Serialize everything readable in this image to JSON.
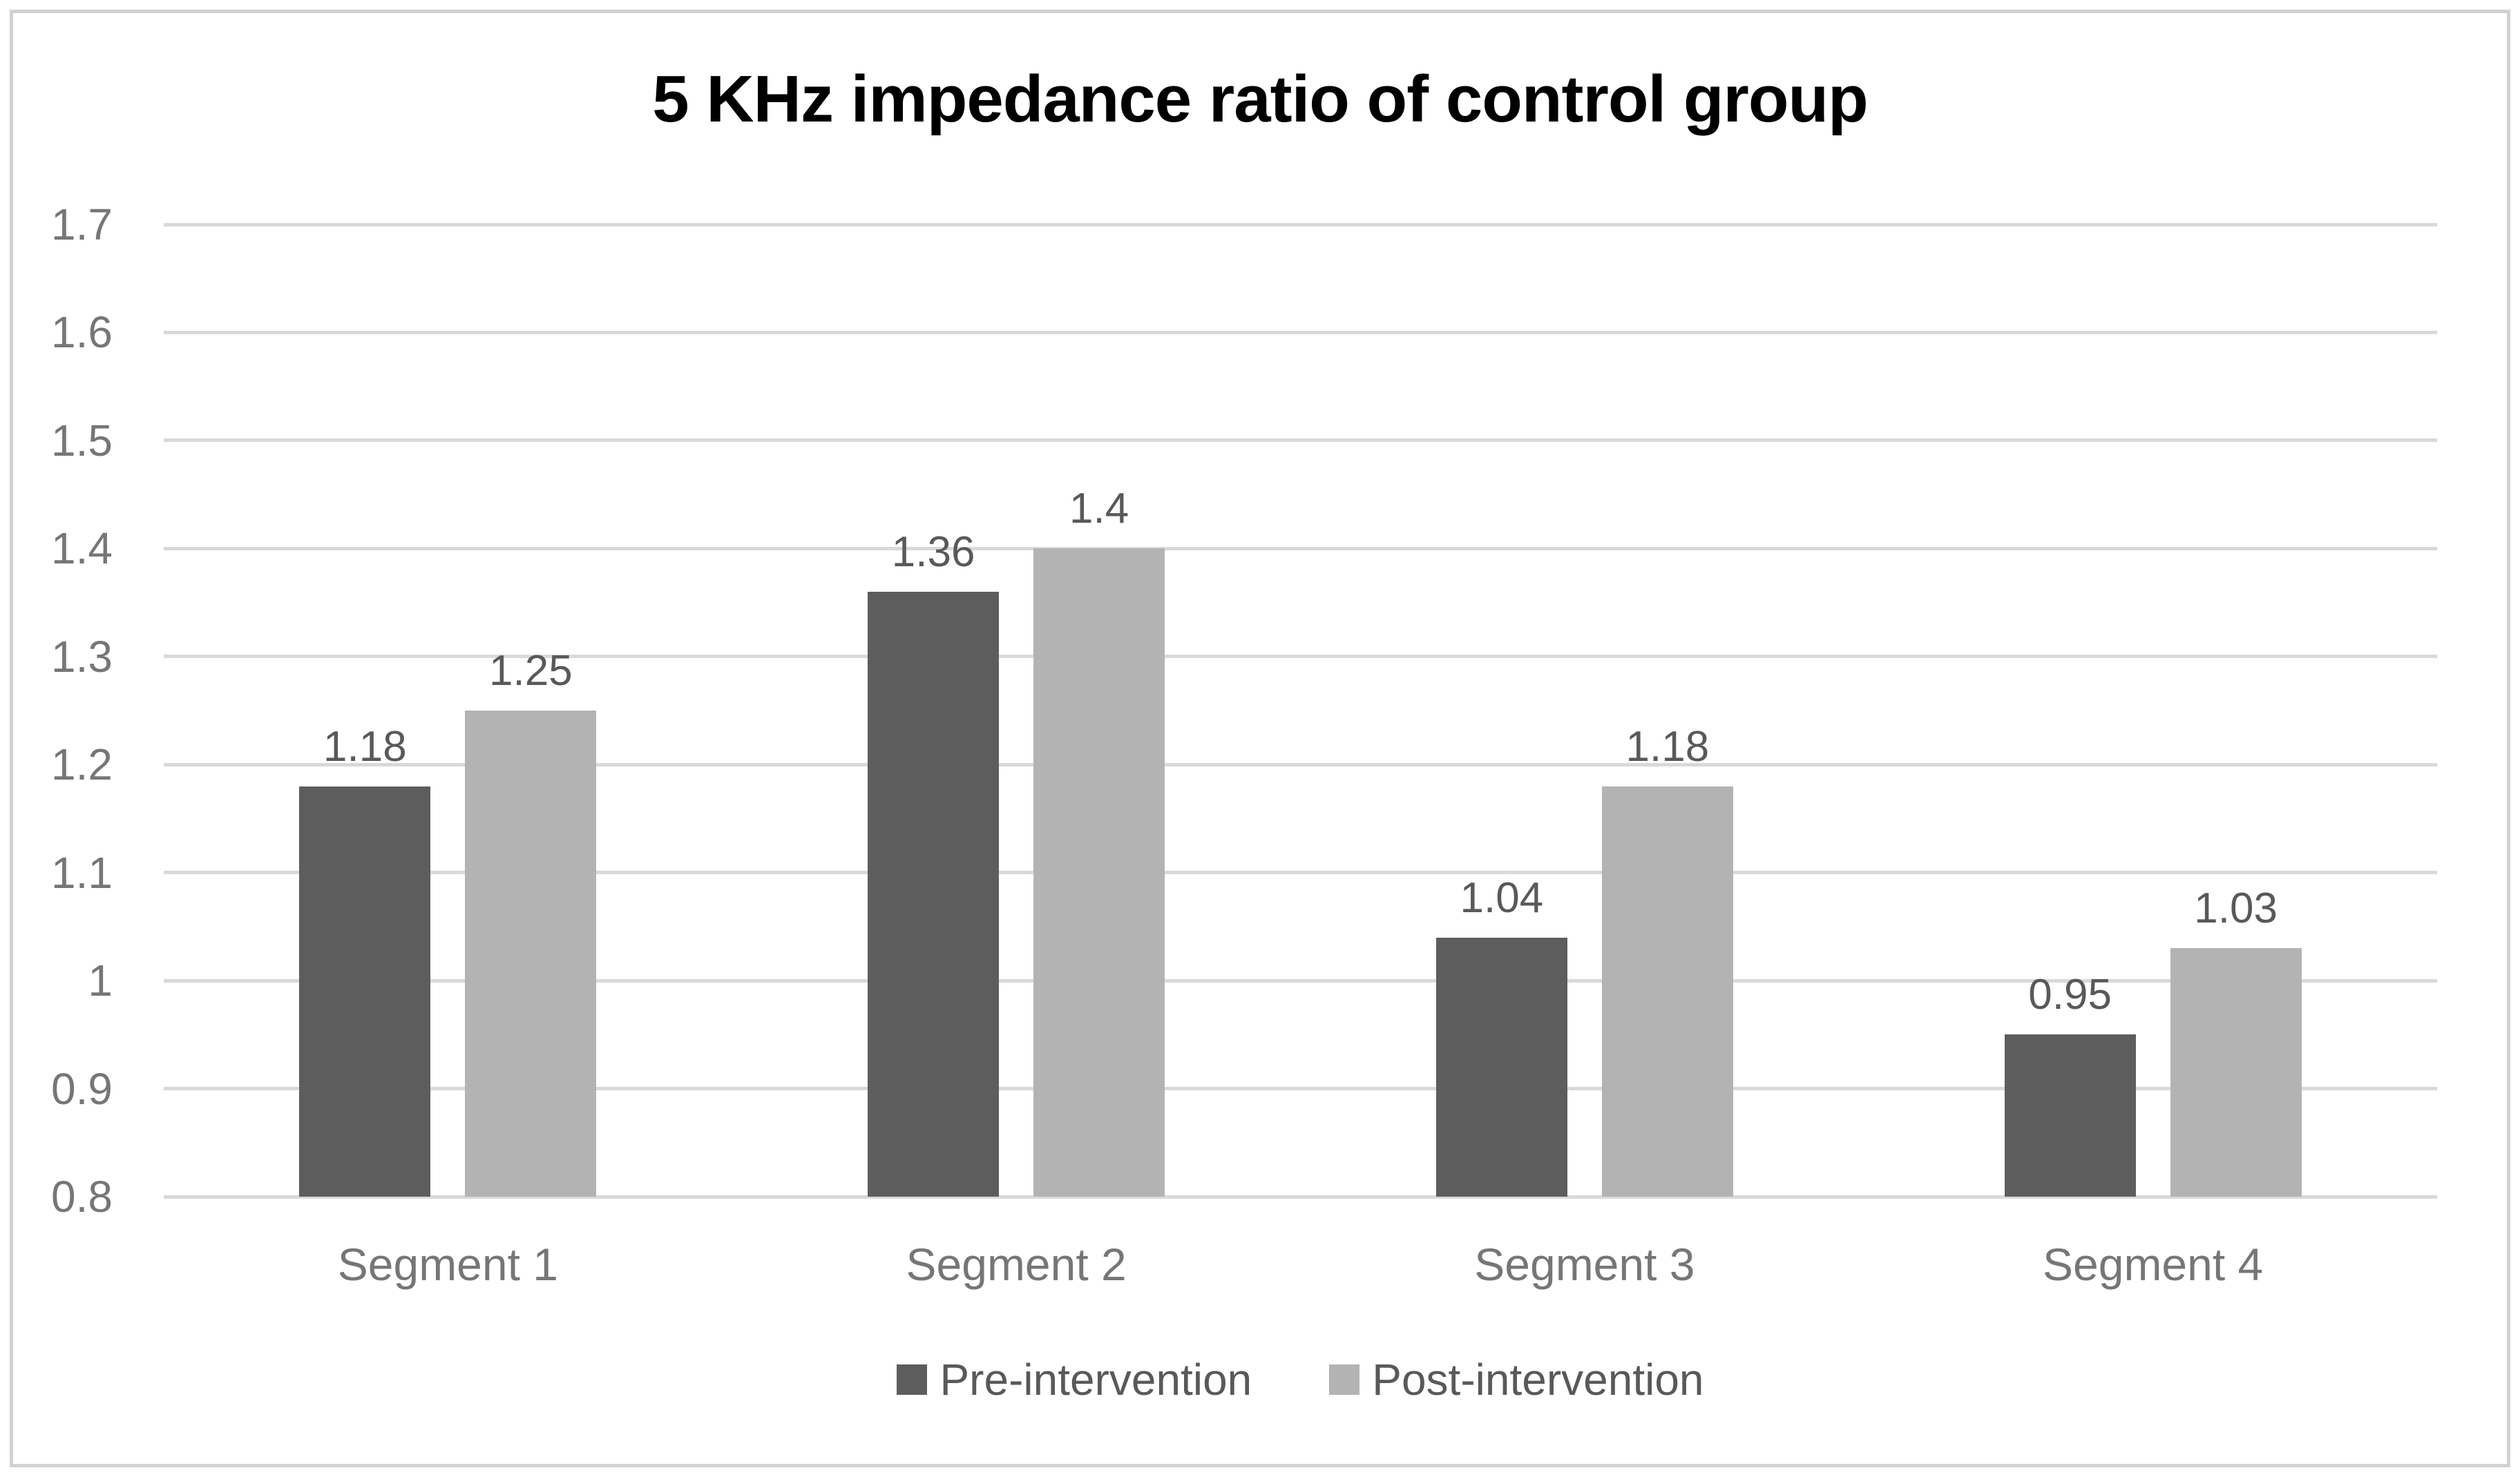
{
  "figure": {
    "border_color": "#d2d2d2",
    "background_color": "#ffffff"
  },
  "chart_data": {
    "type": "bar",
    "title": "5 KHz impedance ratio of control group",
    "categories": [
      "Segment 1",
      "Segment 2",
      "Segment 3",
      "Segment 4"
    ],
    "series": [
      {
        "name": "Pre-intervention",
        "color": "#5d5d5d",
        "values": [
          1.18,
          1.36,
          1.04,
          0.95
        ]
      },
      {
        "name": "Post-intervention",
        "color": "#b3b3b3",
        "values": [
          1.25,
          1.4,
          1.18,
          1.03
        ]
      }
    ],
    "data_labels": [
      "1.18",
      "1.25",
      "1.36",
      "1.4",
      "1.04",
      "1.18",
      "0.95",
      "1.03"
    ],
    "ylim": [
      0.8,
      1.7
    ],
    "ytick_step": 0.1,
    "ytick_labels": [
      "1.7",
      "1.6",
      "1.5",
      "1.4",
      "1.3",
      "1.2",
      "1.1",
      "1",
      "0.9",
      "0.8"
    ],
    "grid": true,
    "gridline_color": "#d9d9d9",
    "tick_label_color": "#767676",
    "data_label_color": "#595959",
    "legend_position": "bottom",
    "legend_text_color": "#595959",
    "xlabel": "",
    "ylabel": ""
  }
}
